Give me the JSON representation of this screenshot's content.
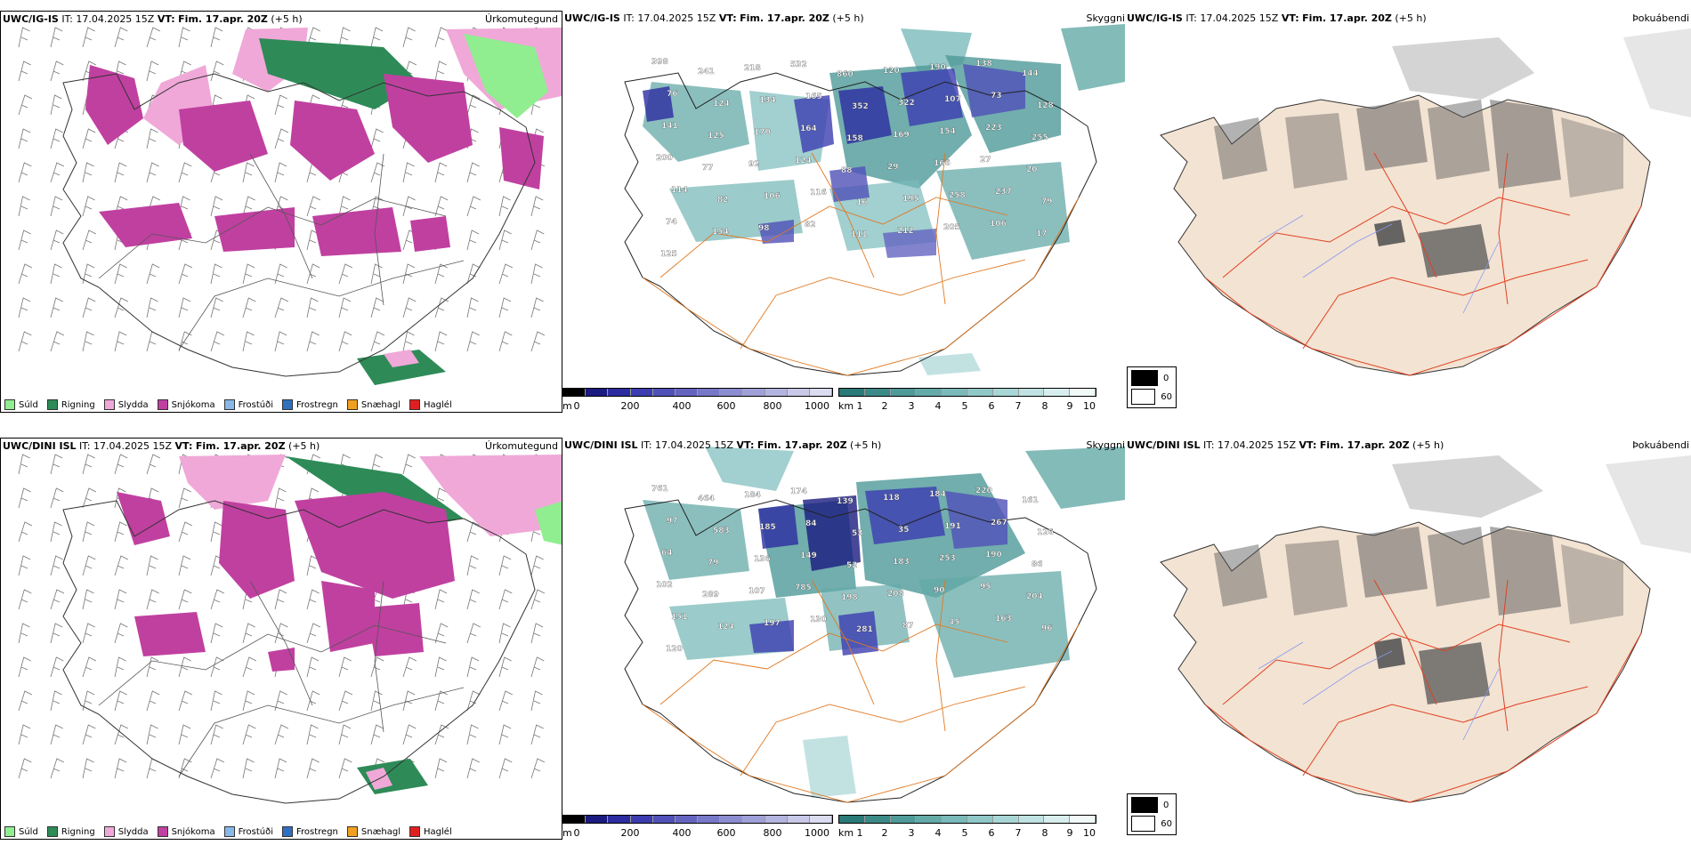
{
  "rows": [
    {
      "model_label": "UWC/IG-IS",
      "it_label": "IT:",
      "it_value": "17.04.2025 15Z",
      "vt_label": "VT:",
      "vt_value": "Fim. 17.apr. 20Z",
      "offset": "(+5 h)"
    },
    {
      "model_label": "UWC/DINI ISL",
      "it_label": "IT:",
      "it_value": "17.04.2025 15Z",
      "vt_label": "VT:",
      "vt_value": "Fim. 17.apr. 20Z",
      "offset": "(+5 h)"
    }
  ],
  "panel_names": {
    "precip": "Úrkomutegund",
    "cloud": "Skyggni",
    "fog": "Þokuábendi"
  },
  "precip_legend": [
    {
      "label": "Súld",
      "color": "#90ee90"
    },
    {
      "label": "Rigning",
      "color": "#2e8b57"
    },
    {
      "label": "Slydda",
      "color": "#f0a8d8"
    },
    {
      "label": "Snjókoma",
      "color": "#c040a0"
    },
    {
      "label": "Frostúði",
      "color": "#87b8e8"
    },
    {
      "label": "Frostregn",
      "color": "#3070c0"
    },
    {
      "label": "Snæhagl",
      "color": "#f0a020"
    },
    {
      "label": "Haglél",
      "color": "#e02020"
    }
  ],
  "cloudbase_bar": {
    "unit": "m",
    "ticks": [
      "0",
      "200",
      "400",
      "600",
      "800",
      "1000"
    ],
    "colors": [
      "#000000",
      "#1a1a80",
      "#2c2ca0",
      "#3c3cb0",
      "#5050b8",
      "#6464c0",
      "#7878c8",
      "#8c8cd0",
      "#a0a0d8",
      "#b4b4e0",
      "#c8c8e8",
      "#dcdcf0"
    ]
  },
  "visibility_bar": {
    "unit": "km",
    "ticks": [
      "1",
      "2",
      "3",
      "4",
      "5",
      "6",
      "7",
      "8",
      "9",
      "10"
    ],
    "colors": [
      "#2a7a78",
      "#3c8a88",
      "#4e9a98",
      "#64aaa8",
      "#7ababa",
      "#90c8c8",
      "#a8d6d6",
      "#c0e2e2",
      "#d8eeee",
      "#f0f8f8"
    ]
  },
  "fog_legend": {
    "dark_value": "0",
    "light_value": "60"
  },
  "cloud_labels_top": [
    "398",
    "241",
    "218",
    "532",
    "860",
    "120",
    "190",
    "138",
    "144",
    "76",
    "124",
    "134",
    "165",
    "352",
    "322",
    "107",
    "73",
    "128",
    "141",
    "125",
    "170",
    "164",
    "158",
    "169",
    "154",
    "223",
    "255",
    "200",
    "77",
    "92",
    "124",
    "88",
    "29",
    "166",
    "27",
    "20",
    "114",
    "82",
    "106",
    "116",
    "16",
    "195",
    "258",
    "237",
    "79",
    "74",
    "154",
    "98",
    "82",
    "111",
    "212",
    "205",
    "106",
    "17",
    "125"
  ],
  "cloud_labels_bottom": [
    "761",
    "464",
    "184",
    "174",
    "139",
    "118",
    "184",
    "220",
    "161",
    "97",
    "583",
    "185",
    "84",
    "53",
    "35",
    "191",
    "267",
    "126",
    "64",
    "79",
    "136",
    "149",
    "52",
    "183",
    "253",
    "190",
    "86",
    "102",
    "289",
    "107",
    "785",
    "198",
    "208",
    "90",
    "95",
    "204",
    "151",
    "124",
    "197",
    "130",
    "281",
    "87",
    "45",
    "163",
    "96",
    "120"
  ]
}
